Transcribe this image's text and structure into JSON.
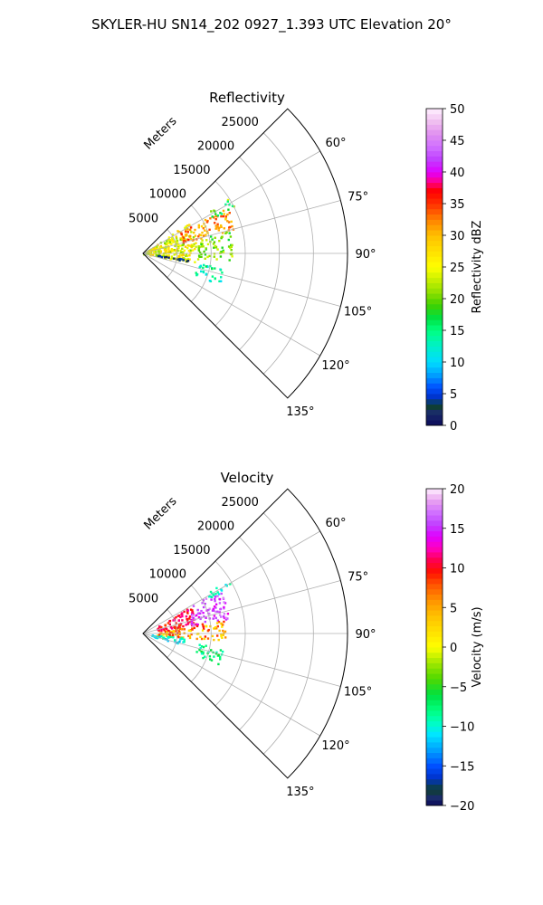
{
  "figure": {
    "suptitle": "SKYLER-HU  SN14_202  0927_1.393 UTC Elevation 20°"
  },
  "chart_data": [
    {
      "type": "heatmap",
      "panel": "polar-sector",
      "title": "Reflectivity",
      "radial_label": "Meters",
      "radial_ticks": [
        "5000",
        "10000",
        "15000",
        "20000",
        "25000"
      ],
      "azimuth_ticks": [
        "60°",
        "75°",
        "90°",
        "105°",
        "120°",
        "135°"
      ],
      "azimuth_range_deg": [
        45,
        135
      ],
      "range_max_m": 30000,
      "grid": true,
      "colorbar": {
        "label": "Reflectivity dBZ",
        "ticks": [
          "0",
          "5",
          "10",
          "15",
          "20",
          "25",
          "30",
          "35",
          "40",
          "45",
          "50"
        ],
        "range": [
          0,
          50
        ],
        "placement": "right"
      },
      "echo_regions": [
        {
          "az": [
            55,
            100
          ],
          "r": [
            0,
            8000
          ],
          "dbz": [
            20,
            30
          ]
        },
        {
          "az": [
            60,
            75
          ],
          "r": [
            6000,
            14000
          ],
          "dbz": [
            28,
            36
          ]
        },
        {
          "az": [
            57,
            63
          ],
          "r": [
            11000,
            15000
          ],
          "dbz": [
            14,
            24
          ]
        },
        {
          "az": [
            75,
            95
          ],
          "r": [
            8000,
            13000
          ],
          "dbz": [
            17,
            24
          ]
        },
        {
          "az": [
            95,
            100
          ],
          "r": [
            2000,
            7000
          ],
          "dbz": [
            1,
            5
          ]
        },
        {
          "az": [
            100,
            112
          ],
          "r": [
            8000,
            12000
          ],
          "dbz": [
            10,
            17
          ]
        }
      ]
    },
    {
      "type": "heatmap",
      "panel": "polar-sector",
      "title": "Velocity",
      "radial_label": "Meters",
      "radial_ticks": [
        "5000",
        "10000",
        "15000",
        "20000",
        "25000"
      ],
      "azimuth_ticks": [
        "60°",
        "75°",
        "90°",
        "105°",
        "120°",
        "135°"
      ],
      "azimuth_range_deg": [
        45,
        135
      ],
      "range_max_m": 30000,
      "grid": true,
      "colorbar": {
        "label": "Velocity (m/s)",
        "ticks": [
          "−20",
          "−15",
          "−10",
          "−5",
          "0",
          "5",
          "10",
          "15",
          "20"
        ],
        "range": [
          -20,
          20
        ],
        "placement": "right"
      },
      "echo_regions": [
        {
          "az": [
            60,
            80
          ],
          "r": [
            2000,
            8000
          ],
          "ms": [
            8,
            12
          ]
        },
        {
          "az": [
            60,
            80
          ],
          "r": [
            7000,
            13000
          ],
          "ms": [
            13,
            18
          ]
        },
        {
          "az": [
            57,
            62
          ],
          "r": [
            11000,
            15000
          ],
          "ms": [
            -11,
            -8
          ]
        },
        {
          "az": [
            80,
            95
          ],
          "r": [
            2000,
            12000
          ],
          "ms": [
            1,
            10
          ]
        },
        {
          "az": [
            95,
            105
          ],
          "r": [
            1000,
            6000
          ],
          "ms": [
            -13,
            -8
          ]
        },
        {
          "az": [
            100,
            112
          ],
          "r": [
            8000,
            12000
          ],
          "ms": [
            -10,
            -5
          ]
        }
      ]
    }
  ],
  "colors": {
    "grid": "#b0b0b0",
    "axis": "#000000"
  }
}
